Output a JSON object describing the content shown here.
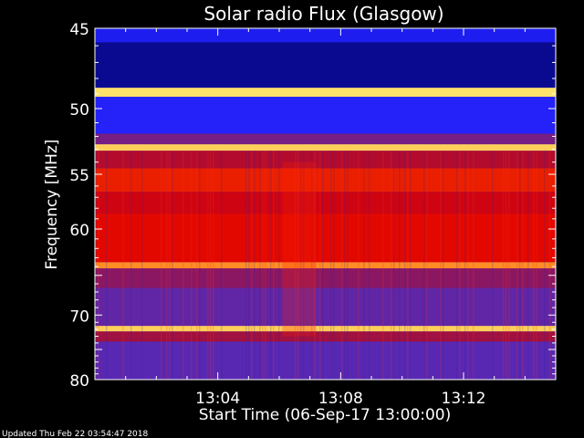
{
  "chart_data": {
    "type": "heatmap",
    "title": "Solar radio Flux (Glasgow)",
    "xlabel": "Start Time (06-Sep-17 13:00:00)",
    "ylabel": "Frequency [MHz]",
    "footer": "Updated Thu Feb 22 03:54:47 2018",
    "x_ticks": [
      "13:04",
      "13:08",
      "13:12"
    ],
    "x_tick_values": [
      4,
      8,
      12
    ],
    "y_ticks": [
      "45",
      "50",
      "55",
      "60",
      "70",
      "80"
    ],
    "y_tick_values": [
      45,
      50,
      55,
      60,
      70,
      80
    ],
    "xlim": [
      0,
      15
    ],
    "ylim": [
      45,
      80
    ],
    "y_scale": "reciprocal",
    "grid": false,
    "colormap": [
      "#000060",
      "#2020ff",
      "#5a28b0",
      "#a01040",
      "#e00000",
      "#ff6000",
      "#ffff80"
    ],
    "frequency_bands": [
      {
        "f0": 45,
        "f1": 45.8,
        "level": 0.15
      },
      {
        "f0": 45.8,
        "f1": 48.6,
        "level": 0.05
      },
      {
        "f0": 48.6,
        "f1": 49.2,
        "level": 0.97
      },
      {
        "f0": 49.2,
        "f1": 51.8,
        "level": 0.18
      },
      {
        "f0": 51.8,
        "f1": 52.6,
        "level": 0.4
      },
      {
        "f0": 52.6,
        "f1": 53.1,
        "level": 0.95
      },
      {
        "f0": 53.1,
        "f1": 54.5,
        "level": 0.55
      },
      {
        "f0": 54.5,
        "f1": 56.5,
        "level": 0.72
      },
      {
        "f0": 56.5,
        "f1": 58.5,
        "level": 0.62
      },
      {
        "f0": 58.5,
        "f1": 63.5,
        "level": 0.68
      },
      {
        "f0": 63.5,
        "f1": 64.2,
        "level": 0.88
      },
      {
        "f0": 64.2,
        "f1": 66.5,
        "level": 0.45
      },
      {
        "f0": 66.5,
        "f1": 71.5,
        "level": 0.35
      },
      {
        "f0": 71.5,
        "f1": 72.3,
        "level": 0.95
      },
      {
        "f0": 72.3,
        "f1": 73.8,
        "level": 0.5
      },
      {
        "f0": 73.8,
        "f1": 80,
        "level": 0.33
      }
    ]
  }
}
